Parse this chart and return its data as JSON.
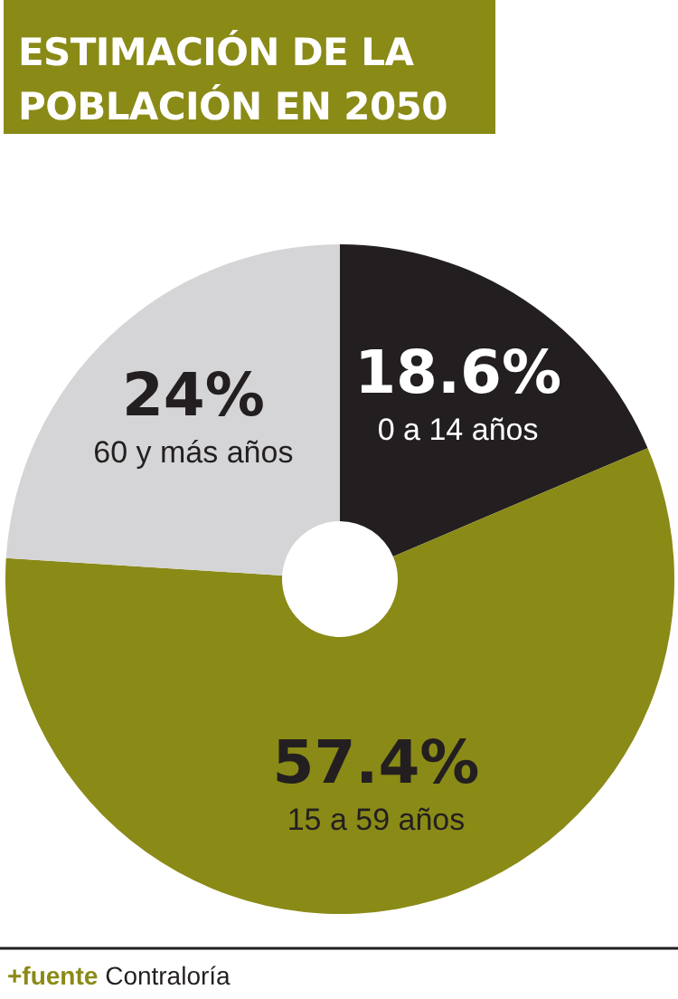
{
  "chart_data": {
    "type": "donut",
    "title": "ESTIMACIÓN DE LA POBLACIÓN EN 2050",
    "categories": [
      "0 a 14 años",
      "15 a 59 años",
      "60 y más años"
    ],
    "values": [
      18.6,
      57.4,
      24
    ],
    "value_labels": [
      "18.6%",
      "57.4%",
      "24%"
    ],
    "colors": [
      "#231f20",
      "#8a8a17",
      "#d5d5d7"
    ],
    "annotations": [
      "+fuente Contraloría"
    ]
  }
}
